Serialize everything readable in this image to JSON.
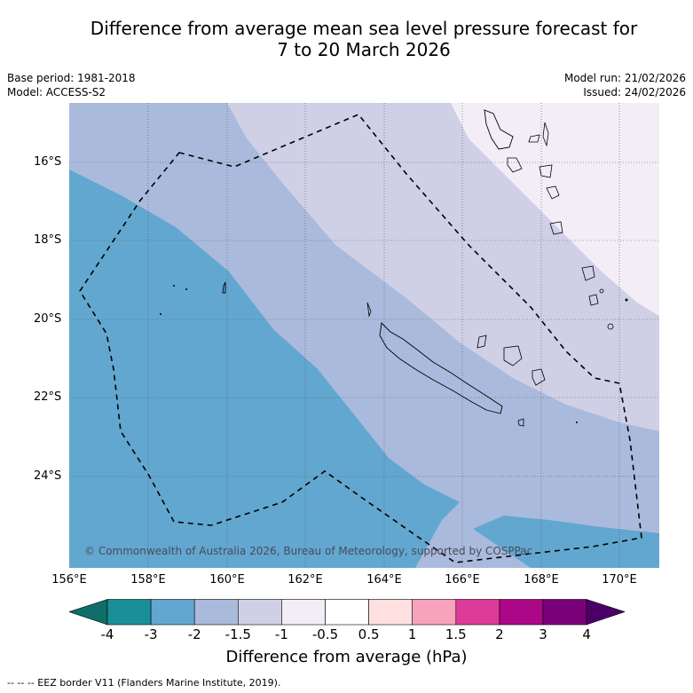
{
  "title": {
    "line1": "Difference from average mean sea level pressure forecast for",
    "line2": "7 to 20 March 2026"
  },
  "meta": {
    "base_period": "Base period: 1981-2018",
    "model": "Model: ACCESS-S2",
    "model_run": "Model run: 21/02/2026",
    "issued": "Issued: 24/02/2026"
  },
  "map": {
    "lat_labels": [
      "16°S",
      "18°S",
      "20°S",
      "22°S",
      "24°S"
    ],
    "lon_labels": [
      "156°E",
      "158°E",
      "160°E",
      "162°E",
      "164°E",
      "166°E",
      "168°E",
      "170°E"
    ],
    "copyright": "© Commonwealth of Australia 2026, Bureau of Meteorology, supported by COSPPac"
  },
  "colorbar": {
    "ticks": [
      "-4",
      "-3",
      "-2",
      "-1.5",
      "-1",
      "-0.5",
      "0.5",
      "1",
      "1.5",
      "2",
      "3",
      "4"
    ],
    "colors": [
      "#1b8f99",
      "#62a7cf",
      "#a9badc",
      "#cfd0e6",
      "#f3eef6",
      "#ffffff",
      "#fde0df",
      "#f8a2bd",
      "#dd3b9a",
      "#ab0786",
      "#7a007a"
    ],
    "under_color": "#0f6e68",
    "over_color": "#4b0068",
    "label": "Difference from average (hPa)"
  },
  "footer": "-- -- -- EEZ border V11 (Flanders Marine Institute, 2019).",
  "colors": {
    "band_m3": "#62a7cf",
    "band_m2": "#a9badc",
    "band_m15": "#cfd0e6",
    "band_m1": "#f3eef6"
  }
}
